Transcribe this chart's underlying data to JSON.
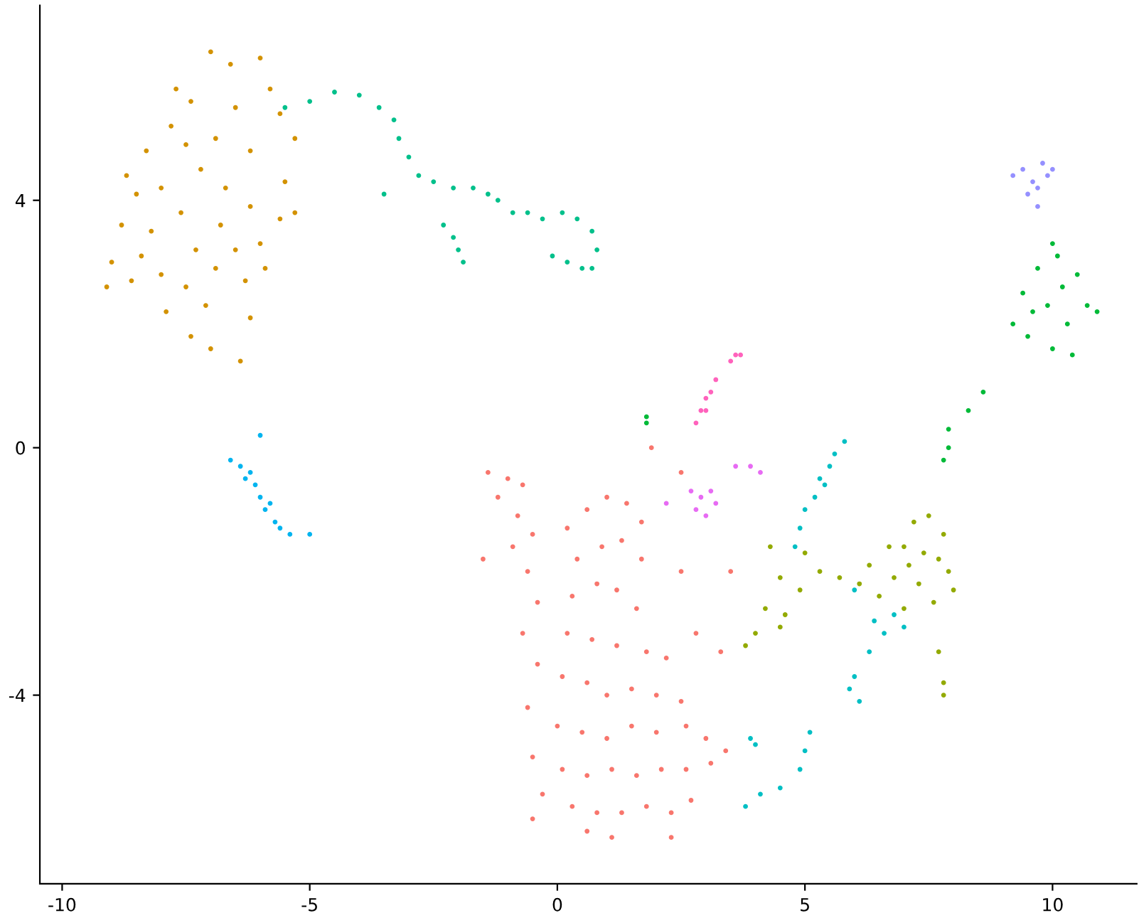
{
  "chart_data": {
    "type": "scatter",
    "xlim": [
      -10.45,
      11.7
    ],
    "ylim": [
      -7.05,
      7.15
    ],
    "xticks": [
      {
        "value": -10,
        "label": "-10"
      },
      {
        "value": -5,
        "label": "-5"
      },
      0,
      5,
      10
    ],
    "yticks": [
      {
        "value": -4,
        "label": "-4"
      },
      0,
      4
    ],
    "grid": false,
    "legend": false,
    "marker": "circle",
    "series": [
      {
        "color": "#f8766d",
        "x": [
          -1.4,
          -1.0,
          -0.7,
          -1.2,
          -0.8,
          -0.5,
          -0.9,
          -0.6,
          -0.4,
          -0.7,
          -0.4,
          -0.6,
          -0.5,
          -0.3,
          -0.5,
          0.2,
          0.6,
          1.0,
          1.4,
          1.7,
          0.4,
          0.9,
          1.3,
          1.7,
          0.3,
          0.8,
          1.2,
          1.6,
          0.2,
          0.7,
          1.2,
          1.8,
          2.2,
          0.1,
          0.6,
          1.0,
          1.5,
          2.0,
          2.5,
          0.0,
          0.5,
          1.0,
          1.5,
          2.0,
          2.6,
          3.0,
          3.4,
          0.1,
          0.6,
          1.1,
          1.6,
          2.1,
          2.6,
          3.1,
          0.3,
          0.8,
          1.3,
          1.8,
          2.3,
          2.7,
          2.3,
          1.1,
          0.6,
          -1.5,
          2.5,
          2.8,
          3.5,
          2.5,
          1.9,
          3.3
        ],
        "values": [
          -0.4,
          -0.5,
          -0.6,
          -0.8,
          -1.1,
          -1.4,
          -1.6,
          -2.0,
          -2.5,
          -3.0,
          -3.5,
          -4.2,
          -5.0,
          -5.6,
          -6.0,
          -1.3,
          -1.0,
          -0.8,
          -0.9,
          -1.2,
          -1.8,
          -1.6,
          -1.5,
          -1.8,
          -2.4,
          -2.2,
          -2.3,
          -2.6,
          -3.0,
          -3.1,
          -3.2,
          -3.3,
          -3.4,
          -3.7,
          -3.8,
          -4.0,
          -3.9,
          -4.0,
          -4.1,
          -4.5,
          -4.6,
          -4.7,
          -4.5,
          -4.6,
          -4.5,
          -4.7,
          -4.9,
          -5.2,
          -5.3,
          -5.2,
          -5.3,
          -5.2,
          -5.2,
          -5.1,
          -5.8,
          -5.9,
          -5.9,
          -5.8,
          -5.9,
          -5.7,
          -6.3,
          -6.3,
          -6.2,
          -1.8,
          -2.0,
          -3.0,
          -2.0,
          -0.4,
          0.0,
          -3.3
        ]
      },
      {
        "color": "#d39200",
        "x": [
          -9.0,
          -8.8,
          -8.6,
          -8.7,
          -8.3,
          -8.0,
          -8.2,
          -8.0,
          -7.9,
          -7.7,
          -7.4,
          -7.0,
          -6.6,
          -7.5,
          -7.2,
          -7.6,
          -7.3,
          -7.5,
          -7.4,
          -7.1,
          -6.9,
          -6.8,
          -6.7,
          -6.9,
          -6.5,
          -6.2,
          -6.0,
          -5.8,
          -6.2,
          -6.0,
          -6.3,
          -6.2,
          -5.9,
          -5.6,
          -5.3,
          -5.5,
          -5.3,
          -5.6,
          -6.5,
          -8.5,
          -8.4,
          -7.0,
          -6.4,
          -9.1,
          -7.8
        ],
        "values": [
          3.0,
          3.6,
          2.7,
          4.4,
          4.8,
          4.2,
          3.5,
          2.8,
          2.2,
          5.8,
          5.6,
          6.4,
          6.2,
          4.9,
          4.5,
          3.8,
          3.2,
          2.6,
          1.8,
          2.3,
          2.9,
          3.6,
          4.2,
          5.0,
          5.5,
          4.8,
          6.3,
          5.8,
          3.9,
          3.3,
          2.7,
          2.1,
          2.9,
          3.7,
          3.8,
          4.3,
          5.0,
          5.4,
          3.2,
          4.1,
          3.1,
          1.6,
          1.4,
          2.6,
          5.2
        ]
      },
      {
        "color": "#00c08b",
        "x": [
          -5.5,
          -5.0,
          -4.5,
          -4.0,
          -3.6,
          -3.3,
          -3.2,
          -3.0,
          -2.8,
          -2.5,
          -2.1,
          -1.7,
          -1.4,
          -1.2,
          -0.9,
          -0.6,
          -0.3,
          0.1,
          0.4,
          0.7,
          0.8,
          0.7,
          0.5,
          0.2,
          -0.1,
          -2.0,
          -1.9,
          -2.1,
          -2.3,
          -3.5
        ],
        "values": [
          5.5,
          5.6,
          5.75,
          5.7,
          5.5,
          5.3,
          5.0,
          4.7,
          4.4,
          4.3,
          4.2,
          4.2,
          4.1,
          4.0,
          3.8,
          3.8,
          3.7,
          3.8,
          3.7,
          3.5,
          3.2,
          2.9,
          2.9,
          3.0,
          3.1,
          3.2,
          3.0,
          3.4,
          3.6,
          4.1
        ]
      },
      {
        "color": "#00b4ef",
        "x": [
          -6.6,
          -6.4,
          -6.3,
          -6.1,
          -6.0,
          -5.9,
          -5.7,
          -5.6,
          -5.4,
          -5.0,
          -6.0,
          -6.2,
          -5.8
        ],
        "values": [
          -0.2,
          -0.3,
          -0.5,
          -0.6,
          -0.8,
          -1.0,
          -1.2,
          -1.3,
          -1.4,
          -1.4,
          0.2,
          -0.4,
          -0.9
        ]
      },
      {
        "color": "#00bfc4",
        "x": [
          5.8,
          5.6,
          5.5,
          5.4,
          5.2,
          5.0,
          4.9,
          4.8,
          5.3,
          6.0,
          6.4,
          6.6,
          6.8,
          7.0,
          6.3,
          6.0,
          5.9,
          6.1,
          5.1,
          5.0,
          4.9,
          4.5,
          4.1,
          3.8,
          3.9,
          4.0
        ],
        "values": [
          0.1,
          -0.1,
          -0.3,
          -0.6,
          -0.8,
          -1.0,
          -1.3,
          -1.6,
          -0.5,
          -2.3,
          -2.8,
          -3.0,
          -2.7,
          -2.9,
          -3.3,
          -3.7,
          -3.9,
          -4.1,
          -4.6,
          -4.9,
          -5.2,
          -5.5,
          -5.6,
          -5.8,
          -4.7,
          -4.8
        ]
      },
      {
        "color": "#93aa00",
        "x": [
          4.3,
          4.5,
          4.2,
          4.5,
          4.9,
          5.3,
          5.7,
          6.1,
          6.5,
          6.8,
          7.0,
          7.2,
          7.5,
          7.8,
          7.9,
          7.6,
          7.3,
          7.1,
          7.4,
          7.0,
          7.7,
          7.8,
          7.8,
          5.0,
          4.6,
          6.3,
          8.0,
          7.7,
          6.7,
          4.0,
          3.8
        ],
        "values": [
          -1.6,
          -2.1,
          -2.6,
          -2.9,
          -2.3,
          -2.0,
          -2.1,
          -2.2,
          -2.4,
          -2.1,
          -1.6,
          -1.2,
          -1.1,
          -1.4,
          -2.0,
          -2.5,
          -2.2,
          -1.9,
          -1.7,
          -2.6,
          -3.3,
          -3.8,
          -4.0,
          -1.7,
          -2.7,
          -1.9,
          -2.3,
          -1.8,
          -1.6,
          -3.0,
          -3.2
        ]
      },
      {
        "color": "#00ba38",
        "x": [
          9.2,
          9.4,
          9.5,
          9.7,
          9.9,
          10.0,
          10.1,
          10.2,
          10.3,
          10.4,
          10.5,
          10.7,
          10.9,
          9.6,
          10.0,
          7.9,
          7.9,
          7.8,
          8.3,
          8.6,
          1.8,
          1.8
        ],
        "values": [
          2.0,
          2.5,
          1.8,
          2.9,
          2.3,
          1.6,
          3.1,
          2.6,
          2.0,
          1.5,
          2.8,
          2.3,
          2.2,
          2.2,
          3.3,
          0.3,
          0.0,
          -0.2,
          0.6,
          0.9,
          0.5,
          0.4
        ]
      },
      {
        "color": "#9590ff",
        "x": [
          9.2,
          9.4,
          9.6,
          9.8,
          9.9,
          9.7,
          9.5,
          10.0,
          9.7
        ],
        "values": [
          4.4,
          4.5,
          4.3,
          4.6,
          4.4,
          4.2,
          4.1,
          4.5,
          3.9
        ]
      },
      {
        "color": "#ff62bc",
        "x": [
          2.8,
          2.9,
          3.0,
          3.1,
          3.2,
          3.5,
          3.7,
          3.6,
          3.0
        ],
        "values": [
          0.4,
          0.6,
          0.8,
          0.9,
          1.1,
          1.4,
          1.5,
          1.5,
          0.6
        ]
      },
      {
        "color": "#e76bf3",
        "x": [
          2.7,
          2.9,
          3.1,
          3.2,
          2.8,
          3.0,
          3.9,
          4.1,
          3.6,
          2.2
        ],
        "values": [
          -0.7,
          -0.8,
          -0.7,
          -0.9,
          -1.0,
          -1.1,
          -0.3,
          -0.4,
          -0.3,
          -0.9
        ]
      }
    ]
  }
}
